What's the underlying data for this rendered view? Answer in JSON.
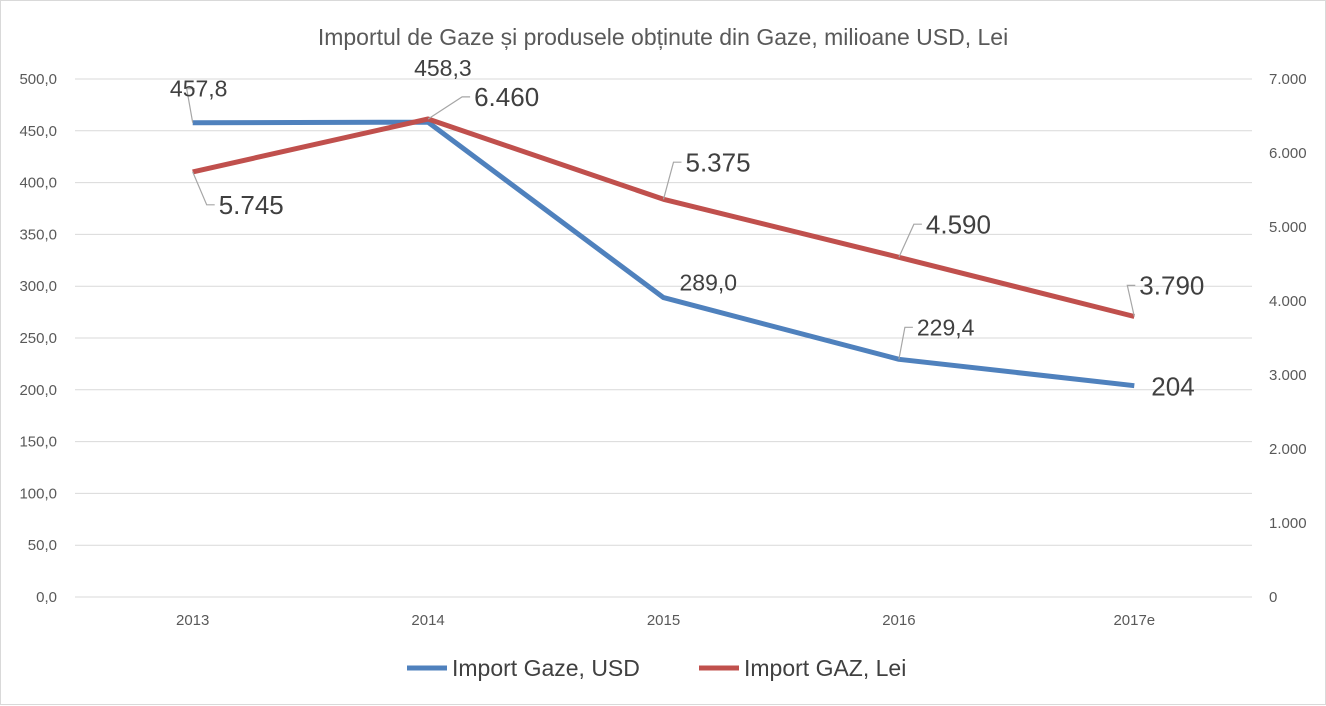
{
  "chart_data": {
    "type": "line",
    "title": "Importul de Gaze și produsele obținute din Gaze, milioane USD, Lei",
    "categories": [
      "2013",
      "2014",
      "2015",
      "2016",
      "2017e"
    ],
    "y_left": {
      "range": [
        0,
        500
      ],
      "ticks": [
        "0,0",
        "50,0",
        "100,0",
        "150,0",
        "200,0",
        "250,0",
        "300,0",
        "350,0",
        "400,0",
        "450,0",
        "500,0"
      ]
    },
    "y_right": {
      "range": [
        0,
        7000
      ],
      "ticks": [
        "0",
        "1.000",
        "2.000",
        "3.000",
        "4.000",
        "5.000",
        "6.000",
        "7.000"
      ]
    },
    "grid": true,
    "legend_position": "bottom",
    "series": [
      {
        "name": "Import Gaze, USD",
        "axis": "left",
        "color": "#4f81bd",
        "values": [
          457.8,
          458.3,
          289.0,
          229.4,
          204
        ],
        "labels": [
          "457,8",
          "458,3",
          "289,0",
          "229,4",
          "204"
        ]
      },
      {
        "name": "Import GAZ, Lei",
        "axis": "right",
        "color": "#c0504d",
        "values": [
          5745,
          6460,
          5375,
          4590,
          3790
        ],
        "labels": [
          "5.745",
          "6.460",
          "5.375",
          "4.590",
          "3.790"
        ]
      }
    ]
  }
}
